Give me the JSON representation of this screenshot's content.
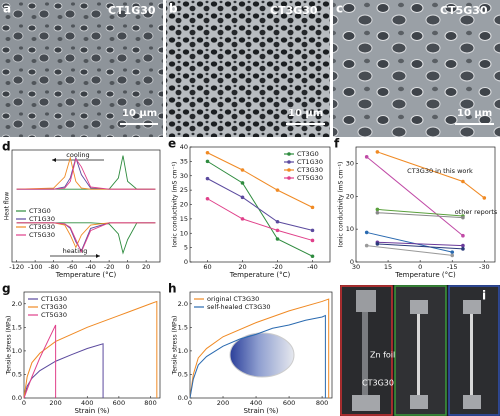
{
  "images": [
    {
      "label": "a",
      "title": "CT1G30",
      "scale": "10 μm"
    },
    {
      "label": "b",
      "title": "CT3G30",
      "scale": "10 μm"
    },
    {
      "label": "c",
      "title": "CT5G30",
      "scale": "10 μm"
    }
  ],
  "photos": {
    "label": "i",
    "annotations": [
      "Zn foil",
      "CT3G30"
    ]
  },
  "chart_data": [
    {
      "type": "line",
      "label": "d",
      "xlabel": "Temperature (°C)",
      "ylabel": "Heat flow",
      "x": [
        -120,
        -80,
        -68,
        -62,
        -56,
        -50,
        -40,
        -20,
        -10,
        -5,
        0,
        10,
        30
      ],
      "xlim": [
        -125,
        35
      ],
      "xticks": [
        -120,
        -100,
        -80,
        -60,
        -40,
        -20,
        0,
        20
      ],
      "ylim": [
        0,
        10
      ],
      "annotations": [
        "cooling",
        "heating"
      ],
      "legend": "center left",
      "series": [
        {
          "name": "CT3G0",
          "color": "#2e8b3e",
          "cooling": [
            6.5,
            6.5,
            6.5,
            6.5,
            6.5,
            6.5,
            6.5,
            6.5,
            7.5,
            9.5,
            7.2,
            6.5,
            6.5
          ],
          "heating": [
            3.5,
            3.5,
            3.5,
            3.5,
            3.5,
            3.5,
            3.5,
            3.4,
            2.5,
            0.8,
            2.0,
            3.5,
            3.5
          ]
        },
        {
          "name": "CT1G30",
          "color": "#5b4a9e",
          "cooling": [
            6.5,
            6.5,
            6.7,
            7.5,
            9.3,
            7.8,
            6.6,
            6.5,
            6.5,
            6.5,
            6.5,
            6.5,
            6.5
          ],
          "heating": [
            3.5,
            3.5,
            3.4,
            3.0,
            1.8,
            1.0,
            3.0,
            3.5,
            3.5,
            3.5,
            3.5,
            3.5,
            3.5
          ]
        },
        {
          "name": "CT3G30",
          "color": "#f08a24",
          "cooling": [
            6.5,
            6.6,
            7.6,
            9.3,
            7.2,
            6.6,
            6.5,
            6.5,
            6.5,
            6.5,
            6.5,
            6.5,
            6.5
          ],
          "heating": [
            3.5,
            3.5,
            3.3,
            2.4,
            1.3,
            2.4,
            3.3,
            3.5,
            3.5,
            3.5,
            3.5,
            3.5,
            3.5
          ]
        },
        {
          "name": "CT5G30",
          "color": "#e0408a",
          "cooling": [
            6.5,
            6.5,
            6.6,
            7.2,
            9.2,
            8.5,
            6.7,
            6.5,
            6.5,
            6.5,
            6.5,
            6.5,
            6.5
          ],
          "heating": [
            3.5,
            3.5,
            3.4,
            3.1,
            2.0,
            0.9,
            2.8,
            3.5,
            3.5,
            3.5,
            3.5,
            3.5,
            3.5
          ]
        }
      ]
    },
    {
      "type": "line",
      "label": "e",
      "xlabel": "Temperature (°C)",
      "ylabel": "Ionic conductivity (mS cm⁻¹)",
      "categories": [
        "60",
        "20",
        "-20",
        "-40"
      ],
      "ylim": [
        0,
        40
      ],
      "yticks": [
        0,
        5,
        10,
        15,
        20,
        25,
        30,
        35,
        40
      ],
      "markers": true,
      "legend": "upper right",
      "series": [
        {
          "name": "CT3G0",
          "color": "#2e8b3e",
          "values": [
            35,
            27.5,
            8,
            2
          ]
        },
        {
          "name": "CT1G30",
          "color": "#5b4a9e",
          "values": [
            29,
            22.5,
            14,
            11
          ]
        },
        {
          "name": "CT3G30",
          "color": "#f08a24",
          "values": [
            38,
            32,
            25,
            19
          ]
        },
        {
          "name": "CT5G30",
          "color": "#e0408a",
          "values": [
            22,
            15,
            11,
            7.5
          ]
        }
      ]
    },
    {
      "type": "line",
      "label": "f",
      "xlabel": "Temperature (°C)",
      "ylabel": "Ionic conductivity (mS cm⁻¹)",
      "xlim": [
        30,
        -35
      ],
      "xticks": [
        30,
        15,
        0,
        -15,
        -30
      ],
      "ylim": [
        0,
        35
      ],
      "yticks": [
        0,
        10,
        20,
        30
      ],
      "markers": true,
      "annotations": [
        "CT3G30 in this work",
        "other reports"
      ],
      "series": [
        {
          "color": "#f08a24",
          "x": [
            20,
            -20,
            -30
          ],
          "values": [
            33.5,
            24.5,
            19.5
          ]
        },
        {
          "color": "#c04aa6",
          "x": [
            25,
            -20
          ],
          "values": [
            32,
            8
          ]
        },
        {
          "color": "#5aa03c",
          "x": [
            20,
            -20
          ],
          "values": [
            16,
            14
          ]
        },
        {
          "color": "#888888",
          "x": [
            20,
            -20
          ],
          "values": [
            15,
            13.5
          ]
        },
        {
          "color": "#2a6ab0",
          "x": [
            25,
            -15
          ],
          "values": [
            9,
            3
          ]
        },
        {
          "color": "#6a3a9a",
          "x": [
            20,
            -20
          ],
          "values": [
            6,
            5
          ]
        },
        {
          "color": "#2a3a7a",
          "x": [
            20,
            -20
          ],
          "values": [
            5.5,
            4
          ]
        },
        {
          "color": "#9a9a9a",
          "x": [
            25,
            -15
          ],
          "values": [
            5,
            2
          ]
        }
      ]
    },
    {
      "type": "line",
      "label": "g",
      "xlabel": "Strain (%)",
      "ylabel": "Tensile stress (MPa)",
      "xlim": [
        0,
        860
      ],
      "xticks": [
        0,
        200,
        400,
        600,
        800
      ],
      "ylim": [
        0,
        2.25
      ],
      "yticks": [
        {
          "value": 0,
          "label": "0.0"
        },
        0.5,
        {
          "value": 1,
          "label": "1.0"
        },
        1.5,
        {
          "value": 2,
          "label": "2.0"
        }
      ],
      "legend": "upper left",
      "series": [
        {
          "name": "CT1G30",
          "color": "#5b4a9e",
          "x": [
            0,
            20,
            50,
            100,
            200,
            300,
            400,
            500,
            500
          ],
          "values": [
            0,
            0.25,
            0.42,
            0.58,
            0.78,
            0.92,
            1.05,
            1.15,
            0
          ]
        },
        {
          "name": "CT3G30",
          "color": "#f08a24",
          "x": [
            0,
            20,
            50,
            100,
            200,
            400,
            600,
            800,
            840,
            840
          ],
          "values": [
            0,
            0.45,
            0.75,
            0.95,
            1.2,
            1.5,
            1.75,
            2.0,
            2.05,
            0
          ]
        },
        {
          "name": "CT5G30",
          "color": "#e0408a",
          "x": [
            0,
            50,
            100,
            150,
            200,
            200
          ],
          "values": [
            0,
            0.45,
            0.85,
            1.2,
            1.55,
            0
          ]
        }
      ]
    },
    {
      "type": "line",
      "label": "h",
      "xlabel": "Strain (%)",
      "ylabel": "Tensile stress (MPa)",
      "xlim": [
        0,
        860
      ],
      "xticks": [
        0,
        200,
        400,
        600,
        800
      ],
      "ylim": [
        0,
        2.25
      ],
      "yticks": [
        {
          "value": 0,
          "label": "0.0"
        },
        0.5,
        {
          "value": 1,
          "label": "1.0"
        },
        1.5,
        {
          "value": 2,
          "label": "2.0"
        }
      ],
      "legend": "upper left",
      "series": [
        {
          "name": "original CT3G30",
          "color": "#f08a24",
          "x": [
            0,
            20,
            50,
            100,
            200,
            400,
            600,
            800,
            840,
            840
          ],
          "values": [
            0,
            0.5,
            0.85,
            1.05,
            1.3,
            1.6,
            1.85,
            2.05,
            2.1,
            0
          ]
        },
        {
          "name": "self-healed CT3G30",
          "color": "#2a6ab0",
          "x": [
            0,
            20,
            50,
            100,
            200,
            300,
            400,
            500,
            600,
            700,
            800,
            820,
            820
          ],
          "values": [
            0,
            0.4,
            0.7,
            0.88,
            1.1,
            1.25,
            1.35,
            1.48,
            1.55,
            1.65,
            1.72,
            1.75,
            0
          ]
        }
      ]
    }
  ]
}
